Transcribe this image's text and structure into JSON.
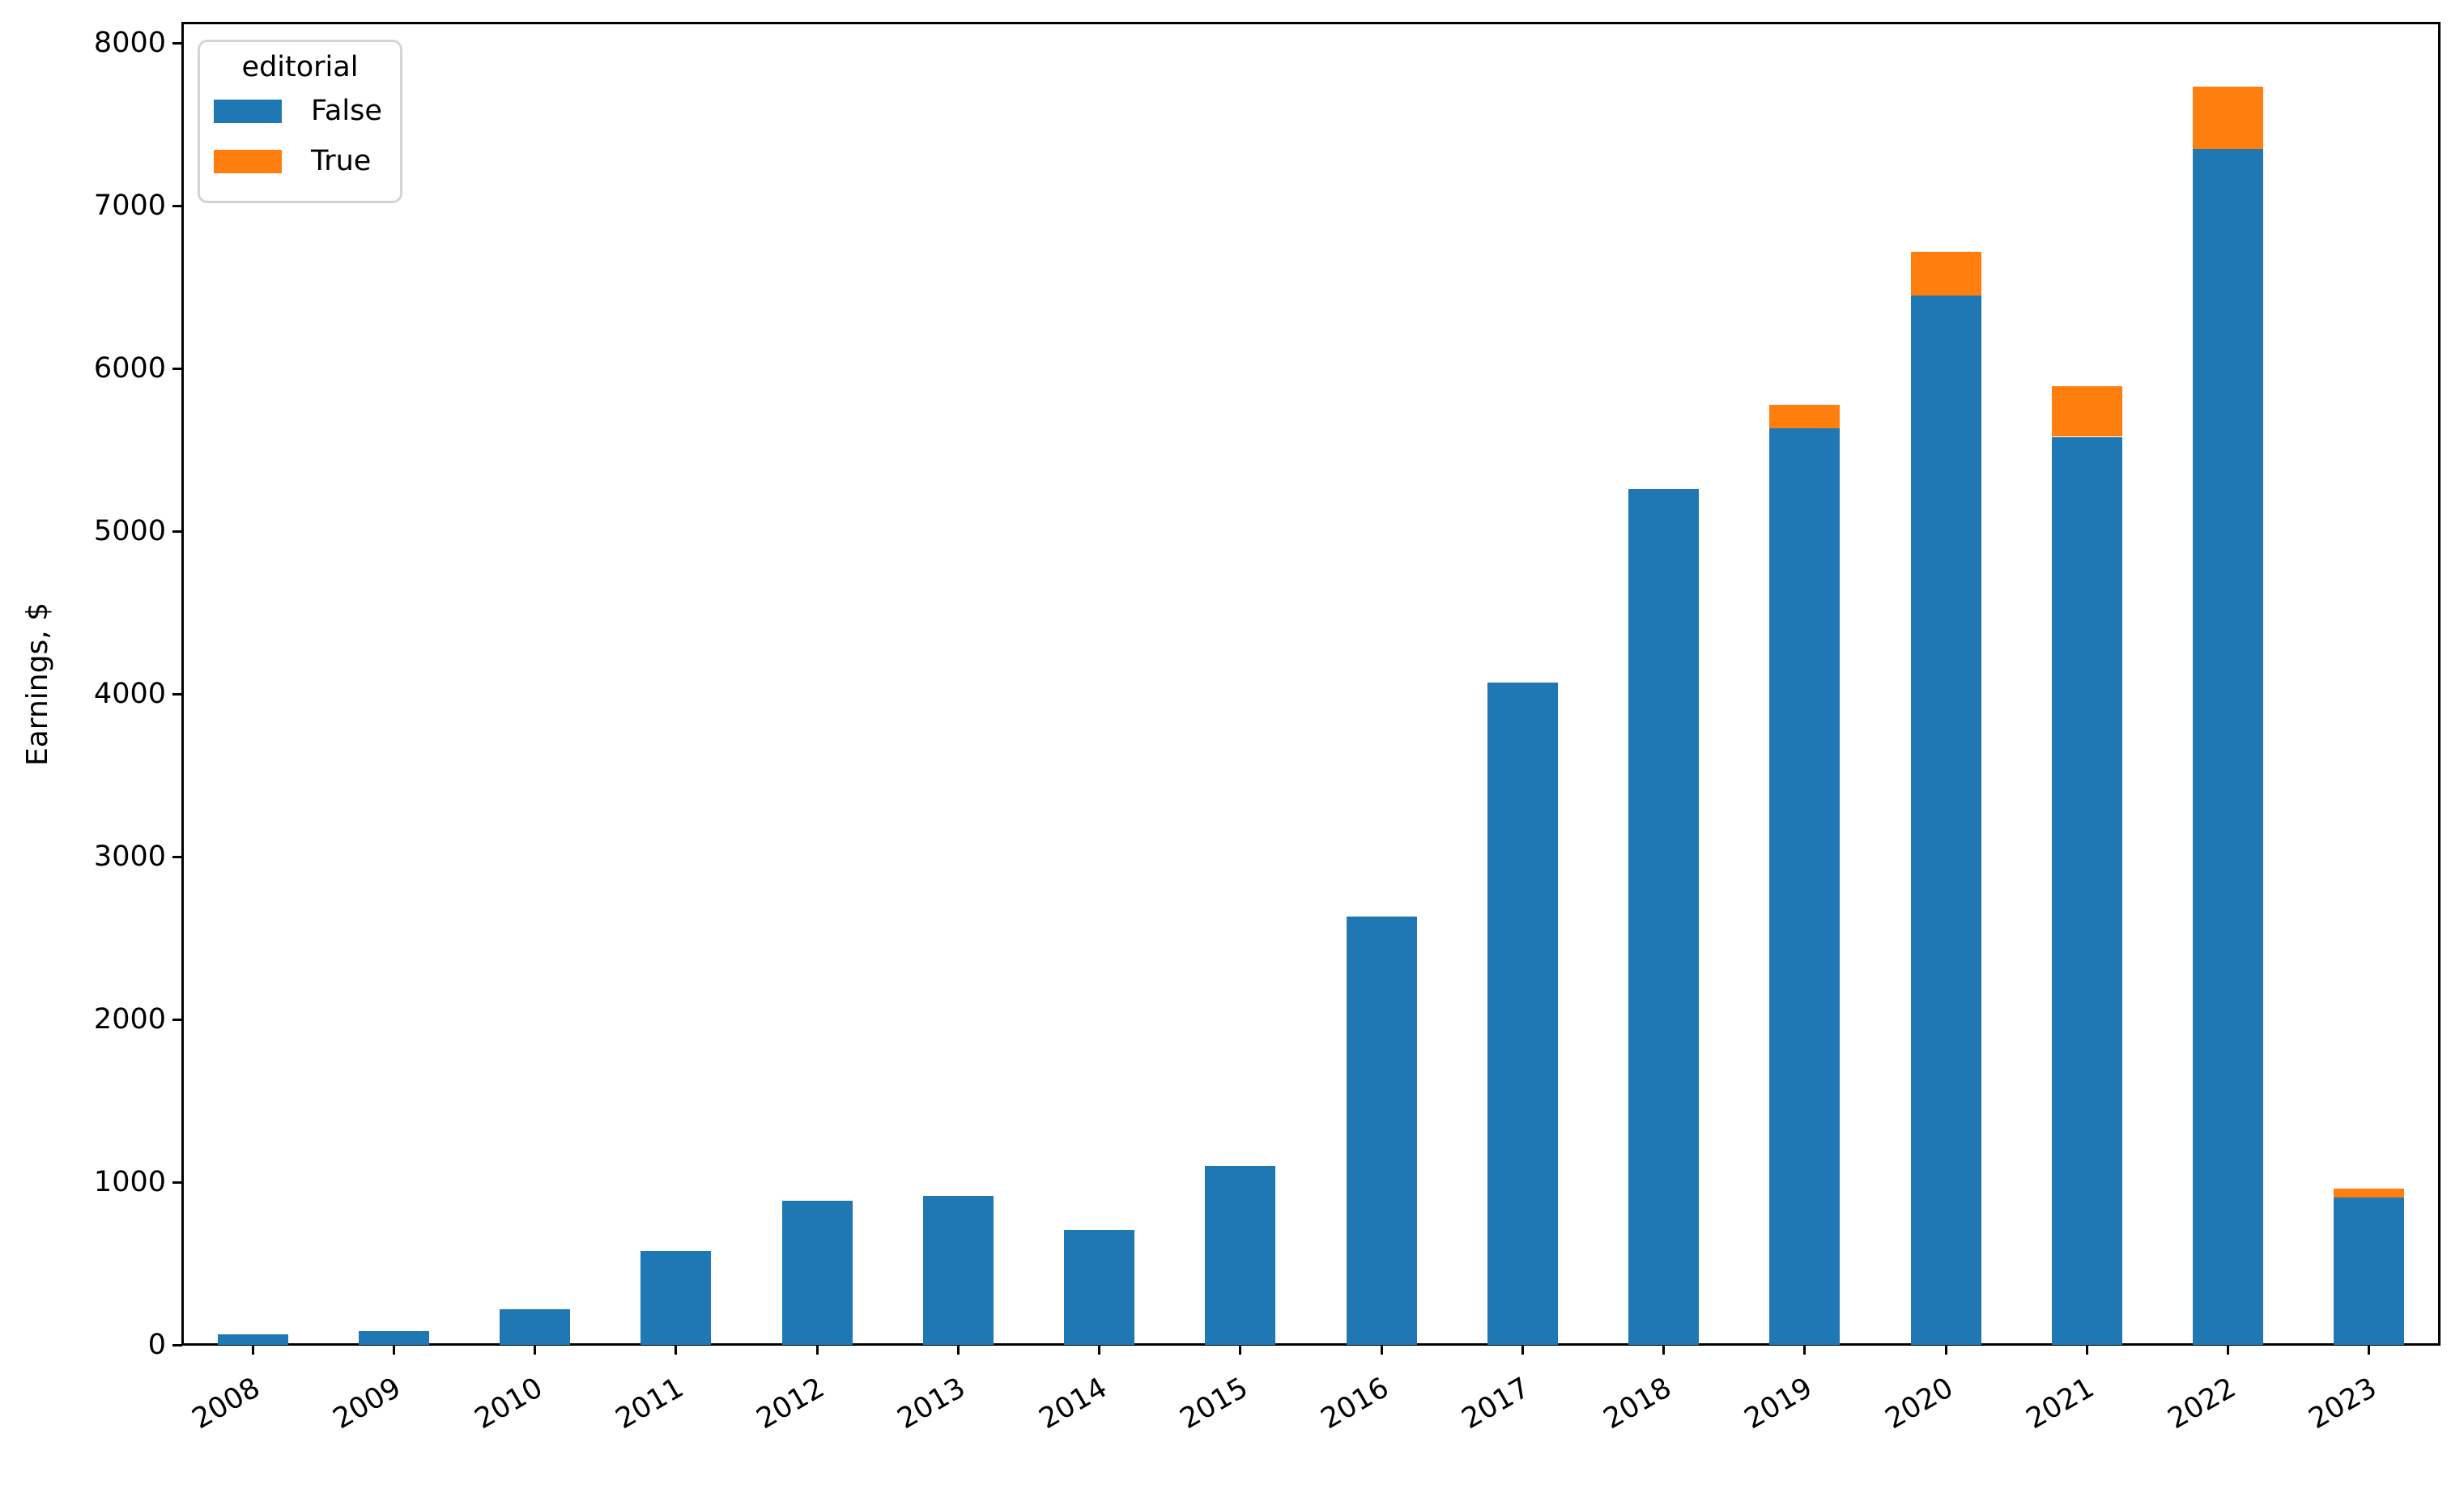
{
  "chart_data": {
    "type": "bar",
    "stacked": true,
    "title": "",
    "xlabel": "",
    "ylabel": "Earnings, $",
    "categories": [
      "2008",
      "2009",
      "2010",
      "2011",
      "2012",
      "2013",
      "2014",
      "2015",
      "2016",
      "2017",
      "2018",
      "2019",
      "2020",
      "2021",
      "2022",
      "2023"
    ],
    "series": [
      {
        "name": "False",
        "color": "#1f77b4",
        "values": [
          65,
          85,
          220,
          575,
          885,
          915,
          705,
          1100,
          2630,
          4070,
          5260,
          5630,
          6450,
          5580,
          7350,
          905
        ]
      },
      {
        "name": "True",
        "color": "#ff7f0e",
        "values": [
          0,
          0,
          0,
          0,
          0,
          0,
          0,
          0,
          0,
          0,
          0,
          145,
          265,
          310,
          380,
          55
        ]
      }
    ],
    "legend": {
      "title": "editorial",
      "position": "upper left"
    },
    "ylim": [
      0,
      8125
    ],
    "yticks": [
      0,
      1000,
      2000,
      3000,
      4000,
      5000,
      6000,
      7000,
      8000
    ],
    "grid": false,
    "xtick_rotation": 30
  }
}
